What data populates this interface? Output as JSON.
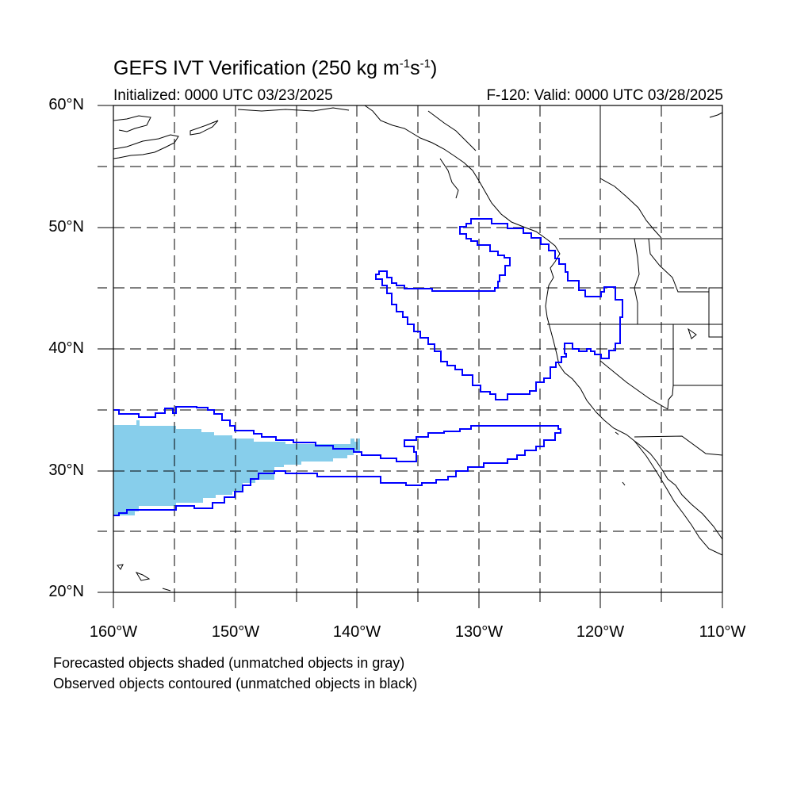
{
  "header": {
    "title_main": "GEFS IVT Verification (250 kg m",
    "title_sup1": "-1",
    "title_mid": "s",
    "title_sup2": "-1",
    "title_end": ")",
    "initialized": "Initialized: 0000 UTC 03/23/2025",
    "valid": "F-120: Valid: 0000 UTC 03/28/2025"
  },
  "axes": {
    "lat_labels": [
      "60°N",
      "50°N",
      "40°N",
      "30°N",
      "20°N"
    ],
    "lon_labels": [
      "160°W",
      "150°W",
      "140°W",
      "130°W",
      "120°W",
      "110°W"
    ],
    "lat_range": [
      20,
      60
    ],
    "lon_range": [
      -160,
      -110
    ],
    "grid": "dashed, every 5 degrees"
  },
  "legend": {
    "line1": "Forecasted objects shaded (unmatched objects in gray)",
    "line2": "Observed objects contoured (unmatched objects in black)"
  },
  "colors": {
    "forecast_fill": "#87ceeb",
    "observed_contour": "#0000ff",
    "coastline": "#000000",
    "grid": "#000000"
  }
}
